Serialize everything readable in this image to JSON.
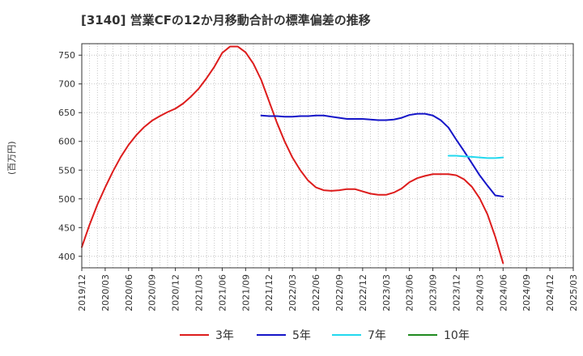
{
  "chart_data": {
    "type": "line",
    "title": "[3140]  営業CFの12か月移動合計の標準偏差の推移",
    "ylabel": "(百万円)",
    "xlabel": "",
    "x_ticks": [
      "2019/12",
      "2020/03",
      "2020/06",
      "2020/09",
      "2020/12",
      "2021/03",
      "2021/06",
      "2021/09",
      "2021/12",
      "2022/03",
      "2022/06",
      "2022/09",
      "2022/12",
      "2023/03",
      "2023/06",
      "2023/09",
      "2023/12",
      "2024/03",
      "2024/06",
      "2024/09",
      "2024/12",
      "2025/03"
    ],
    "y_ticks": [
      400,
      450,
      500,
      550,
      600,
      650,
      700,
      750
    ],
    "ylim": [
      380,
      770
    ],
    "grid": true,
    "legend_position": "bottom",
    "series": [
      {
        "name": "3年",
        "color": "#dd1c1c",
        "points": [
          [
            "2019/12",
            416
          ],
          [
            "2020/01",
            455
          ],
          [
            "2020/02",
            490
          ],
          [
            "2020/03",
            520
          ],
          [
            "2020/04",
            548
          ],
          [
            "2020/05",
            573
          ],
          [
            "2020/06",
            594
          ],
          [
            "2020/07",
            611
          ],
          [
            "2020/08",
            625
          ],
          [
            "2020/09",
            636
          ],
          [
            "2020/10",
            644
          ],
          [
            "2020/11",
            651
          ],
          [
            "2020/12",
            657
          ],
          [
            "2021/01",
            666
          ],
          [
            "2021/02",
            678
          ],
          [
            "2021/03",
            692
          ],
          [
            "2021/04",
            710
          ],
          [
            "2021/05",
            730
          ],
          [
            "2021/06",
            754
          ],
          [
            "2021/07",
            765
          ],
          [
            "2021/08",
            765
          ],
          [
            "2021/09",
            755
          ],
          [
            "2021/10",
            735
          ],
          [
            "2021/11",
            707
          ],
          [
            "2021/12",
            670
          ],
          [
            "2022/01",
            633
          ],
          [
            "2022/02",
            600
          ],
          [
            "2022/03",
            572
          ],
          [
            "2022/04",
            550
          ],
          [
            "2022/05",
            532
          ],
          [
            "2022/06",
            520
          ],
          [
            "2022/07",
            515
          ],
          [
            "2022/08",
            514
          ],
          [
            "2022/09",
            515
          ],
          [
            "2022/10",
            517
          ],
          [
            "2022/11",
            517
          ],
          [
            "2022/12",
            513
          ],
          [
            "2023/01",
            509
          ],
          [
            "2023/02",
            507
          ],
          [
            "2023/03",
            507
          ],
          [
            "2023/04",
            511
          ],
          [
            "2023/05",
            518
          ],
          [
            "2023/06",
            529
          ],
          [
            "2023/07",
            536
          ],
          [
            "2023/08",
            540
          ],
          [
            "2023/09",
            543
          ],
          [
            "2023/10",
            543
          ],
          [
            "2023/11",
            543
          ],
          [
            "2023/12",
            541
          ],
          [
            "2024/01",
            534
          ],
          [
            "2024/02",
            521
          ],
          [
            "2024/03",
            501
          ],
          [
            "2024/04",
            473
          ],
          [
            "2024/05",
            434
          ],
          [
            "2024/06",
            388
          ]
        ]
      },
      {
        "name": "5年",
        "color": "#1515c8",
        "points": [
          [
            "2021/11",
            645
          ],
          [
            "2021/12",
            644
          ],
          [
            "2022/01",
            644
          ],
          [
            "2022/02",
            643
          ],
          [
            "2022/03",
            643
          ],
          [
            "2022/04",
            644
          ],
          [
            "2022/05",
            644
          ],
          [
            "2022/06",
            645
          ],
          [
            "2022/07",
            645
          ],
          [
            "2022/08",
            643
          ],
          [
            "2022/09",
            641
          ],
          [
            "2022/10",
            639
          ],
          [
            "2022/11",
            639
          ],
          [
            "2022/12",
            639
          ],
          [
            "2023/01",
            638
          ],
          [
            "2023/02",
            637
          ],
          [
            "2023/03",
            637
          ],
          [
            "2023/04",
            638
          ],
          [
            "2023/05",
            641
          ],
          [
            "2023/06",
            646
          ],
          [
            "2023/07",
            648
          ],
          [
            "2023/08",
            648
          ],
          [
            "2023/09",
            645
          ],
          [
            "2023/10",
            637
          ],
          [
            "2023/11",
            624
          ],
          [
            "2023/12",
            603
          ],
          [
            "2024/01",
            583
          ],
          [
            "2024/02",
            562
          ],
          [
            "2024/03",
            541
          ],
          [
            "2024/04",
            523
          ],
          [
            "2024/05",
            506
          ],
          [
            "2024/06",
            504
          ]
        ]
      },
      {
        "name": "7年",
        "color": "#22d8ee",
        "points": [
          [
            "2023/11",
            575
          ],
          [
            "2023/12",
            575
          ],
          [
            "2024/01",
            574
          ],
          [
            "2024/02",
            573
          ],
          [
            "2024/03",
            572
          ],
          [
            "2024/04",
            571
          ],
          [
            "2024/05",
            571
          ],
          [
            "2024/06",
            572
          ]
        ]
      },
      {
        "name": "10年",
        "color": "#208a20",
        "points": []
      }
    ]
  }
}
